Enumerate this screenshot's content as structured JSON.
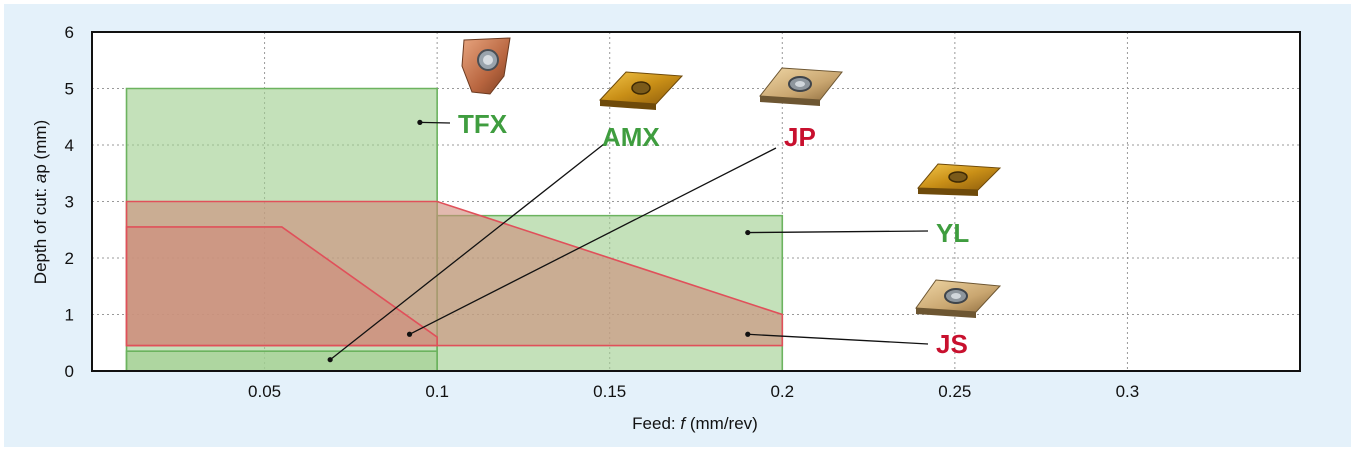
{
  "chart_data": {
    "type": "area",
    "title": "",
    "xlabel_prefix": "Feed: ",
    "xlabel_var": "f",
    "xlabel_suffix": " (mm/rev)",
    "ylabel_prefix": "Depth of cut: ",
    "ylabel_var": "a",
    "ylabel_suffix": "p (mm)",
    "xlim": [
      0,
      0.35
    ],
    "ylim": [
      0,
      6
    ],
    "x_ticks": [
      0.05,
      0.1,
      0.15,
      0.2,
      0.25,
      0.3
    ],
    "x_tick_labels": [
      "0.05",
      "0.1",
      "0.15",
      "0.2",
      "0.25",
      "0.3"
    ],
    "y_ticks": [
      0,
      1,
      2,
      3,
      4,
      5,
      6
    ],
    "y_tick_labels": [
      "0",
      "1",
      "2",
      "3",
      "4",
      "5",
      "6"
    ],
    "grid": true,
    "colors": {
      "green_fill": "#9fce8f",
      "green_stroke": "#6cb35f",
      "red_fill": "#cf8a79",
      "red_stroke": "#e0505a",
      "green_text": "#3f9d3f",
      "red_text": "#c8102e"
    },
    "regions": [
      {
        "name": "TFX",
        "kind": "green",
        "points": [
          [
            0.01,
            0
          ],
          [
            0.1,
            0
          ],
          [
            0.1,
            5
          ],
          [
            0.01,
            5
          ]
        ]
      },
      {
        "name": "YL",
        "kind": "green",
        "points": [
          [
            0.1,
            0
          ],
          [
            0.2,
            0
          ],
          [
            0.2,
            2.75
          ],
          [
            0.1,
            2.75
          ]
        ]
      },
      {
        "name": "AMX",
        "kind": "green",
        "points": [
          [
            0.01,
            0
          ],
          [
            0.1,
            0
          ],
          [
            0.1,
            0.35
          ],
          [
            0.01,
            0.35
          ]
        ]
      },
      {
        "name": "JS",
        "kind": "red",
        "points": [
          [
            0.01,
            0.45
          ],
          [
            0.2,
            0.45
          ],
          [
            0.2,
            1.0
          ],
          [
            0.1,
            3.0
          ],
          [
            0.01,
            3.0
          ]
        ]
      },
      {
        "name": "JP",
        "kind": "red",
        "points": [
          [
            0.01,
            0.45
          ],
          [
            0.1,
            0.45
          ],
          [
            0.1,
            0.6
          ],
          [
            0.055,
            2.55
          ],
          [
            0.01,
            2.55
          ]
        ]
      }
    ],
    "labels": [
      {
        "text": "TFX",
        "color": "green",
        "point": [
          0.095,
          4.4
        ]
      },
      {
        "text": "AMX",
        "color": "green",
        "point": [
          0.069,
          0.2
        ]
      },
      {
        "text": "JP",
        "color": "red",
        "point": [
          0.092,
          0.65
        ]
      },
      {
        "text": "YL",
        "color": "green",
        "point": [
          0.19,
          2.45
        ]
      },
      {
        "text": "JS",
        "color": "red",
        "point": [
          0.19,
          0.65
        ]
      }
    ],
    "insert_icons": [
      "tfx-insert-icon",
      "amx-insert-icon",
      "jp-insert-icon",
      "yl-insert-icon",
      "js-insert-icon"
    ]
  }
}
